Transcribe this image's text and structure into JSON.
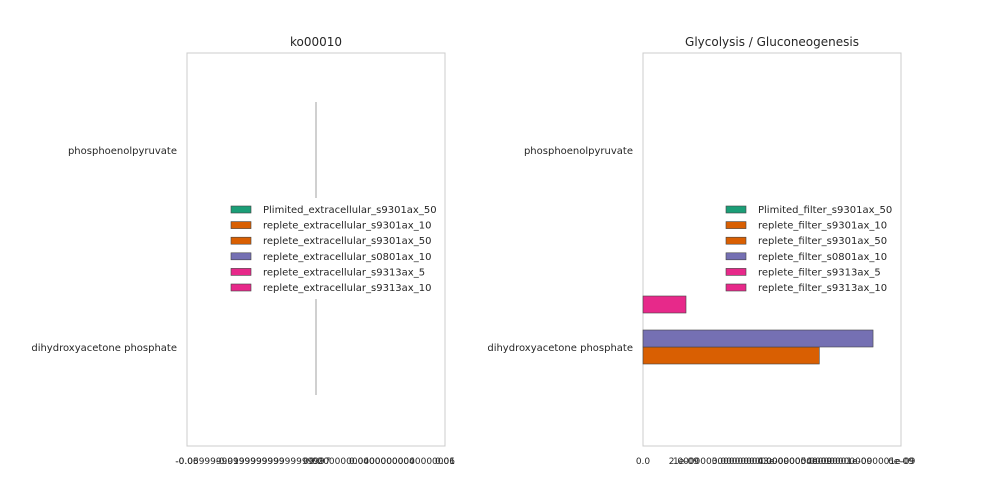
{
  "chart_data": [
    {
      "type": "bar",
      "orientation": "horizontal",
      "title": "ko00010",
      "categories": [
        "phosphoenolpyruvate",
        "dihydroxyacetone phosphate"
      ],
      "x_tick_labels": [
        "-0.06",
        "-0.03999999999999999",
        "-0.019999999999999997",
        "0.0",
        "0.020000000000000004",
        "0.04000000000000001",
        "0.06"
      ],
      "xlim": [
        -0.06,
        0.06
      ],
      "grid": false,
      "legend_position": "center",
      "series": [
        {
          "name": "Plimited_extracellular_s9301ax_50",
          "color": "#1b9e77",
          "values": [
            0,
            0
          ]
        },
        {
          "name": "replete_extracellular_s9301ax_10",
          "color": "#d95f02",
          "values": [
            0,
            0
          ]
        },
        {
          "name": "replete_extracellular_s9301ax_50",
          "color": "#d95f02",
          "values": [
            0,
            0
          ]
        },
        {
          "name": "replete_extracellular_s0801ax_10",
          "color": "#7570b3",
          "values": [
            0,
            0
          ]
        },
        {
          "name": "replete_extracellular_s9313ax_5",
          "color": "#e7298a",
          "values": [
            0,
            0
          ]
        },
        {
          "name": "replete_extracellular_s9313ax_10",
          "color": "#e7298a",
          "values": [
            0,
            0
          ]
        }
      ]
    },
    {
      "type": "bar",
      "orientation": "horizontal",
      "title": "Glycolysis / Gluconeogenesis",
      "categories": [
        "phosphoenolpyruvate",
        "dihydroxyacetone phosphate"
      ],
      "x_tick_labels": [
        "0.0",
        "1e-09",
        "2.0000000000000003e-09",
        "3.0000000000000004e-09",
        "4.000000000000001e-09",
        "5.000000000000001e-09",
        "6e-09"
      ],
      "xlim": [
        0,
        6e-09
      ],
      "grid": false,
      "legend_position": "center-right",
      "series": [
        {
          "name": "Plimited_filter_s9301ax_50",
          "color": "#1b9e77",
          "values": [
            0,
            0
          ]
        },
        {
          "name": "replete_filter_s9301ax_10",
          "color": "#d95f02",
          "values": [
            0,
            0
          ]
        },
        {
          "name": "replete_filter_s9301ax_50",
          "color": "#d95f02",
          "values": [
            0,
            4.1e-09
          ]
        },
        {
          "name": "replete_filter_s0801ax_10",
          "color": "#7570b3",
          "values": [
            0,
            5.35e-09
          ]
        },
        {
          "name": "replete_filter_s9313ax_5",
          "color": "#e7298a",
          "values": [
            0,
            0
          ]
        },
        {
          "name": "replete_filter_s9313ax_10",
          "color": "#e7298a",
          "values": [
            0,
            1e-09
          ]
        }
      ]
    }
  ]
}
